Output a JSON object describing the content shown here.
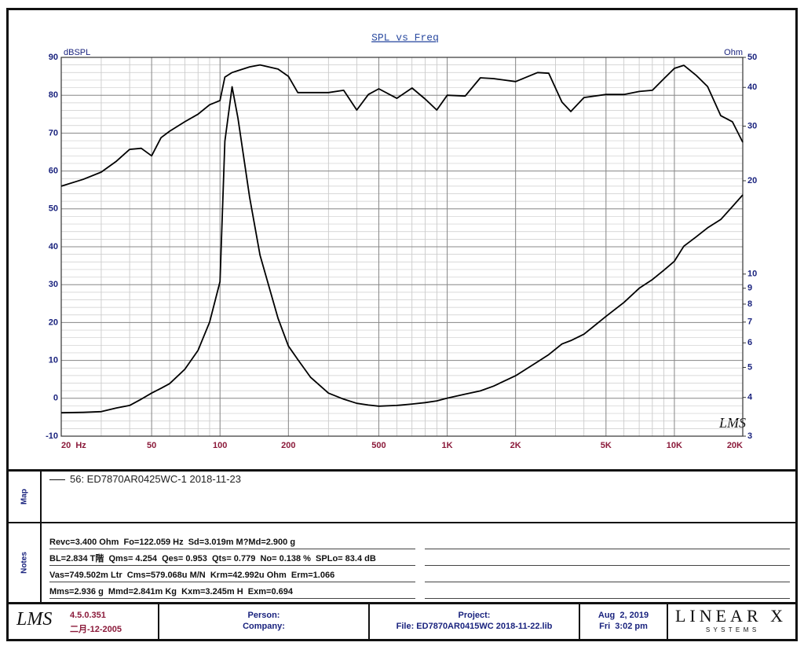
{
  "chart_data": {
    "type": "line",
    "title": "SPL vs Freq",
    "y_label": "dBSPL",
    "y2_label": "Ohm",
    "watermark": "LMS",
    "x": [
      20,
      25,
      30,
      35,
      40,
      45,
      50,
      55,
      60,
      70,
      80,
      90,
      100,
      105,
      113,
      120,
      135,
      150,
      180,
      200,
      220,
      250,
      300,
      350,
      400,
      450,
      500,
      600,
      700,
      800,
      900,
      1000,
      1200,
      1400,
      1600,
      2000,
      2500,
      2800,
      3200,
      3500,
      4000,
      5000,
      6000,
      7000,
      8000,
      9000,
      10000,
      11000,
      12500,
      14000,
      16000,
      18000,
      20000
    ],
    "series": [
      {
        "color": "#000000",
        "axis": "y",
        "values": [
          56.0,
          57.8,
          59.7,
          62.6,
          65.7,
          66.0,
          64.0,
          68.8,
          70.5,
          73.0,
          75.0,
          77.5,
          78.6,
          84.8,
          86.0,
          86.5,
          87.5,
          88.0,
          86.9,
          85.0,
          80.7,
          80.7,
          80.7,
          81.3,
          76.1,
          80.2,
          81.7,
          79.2,
          81.9,
          79.0,
          76.1,
          80.0,
          79.8,
          84.6,
          84.4,
          83.6,
          86.0,
          85.8,
          78.2,
          75.7,
          79.4,
          80.2,
          80.2,
          81.0,
          81.3,
          84.4,
          87.1,
          87.9,
          85.2,
          82.3,
          74.6,
          73.0,
          67.6
        ]
      },
      {
        "color": "#000000",
        "axis": "y2",
        "values": [
          3.57,
          3.58,
          3.6,
          3.7,
          3.77,
          3.95,
          4.13,
          4.28,
          4.43,
          4.93,
          5.67,
          7.0,
          9.45,
          26.8,
          40.2,
          31.8,
          17.7,
          11.5,
          7.2,
          5.86,
          5.3,
          4.65,
          4.13,
          3.95,
          3.83,
          3.78,
          3.75,
          3.77,
          3.81,
          3.85,
          3.9,
          3.98,
          4.1,
          4.2,
          4.35,
          4.7,
          5.21,
          5.5,
          5.95,
          6.1,
          6.4,
          7.3,
          8.1,
          9.0,
          9.6,
          10.3,
          11.0,
          12.3,
          13.2,
          14.1,
          15.0,
          16.5,
          18.0
        ]
      }
    ],
    "xlim": [
      20,
      20000
    ],
    "xscale": "log",
    "xticks": [
      {
        "value": 20,
        "label": "20  Hz"
      },
      50,
      100,
      200,
      500,
      {
        "value": 1000,
        "label": "1K"
      },
      {
        "value": 2000,
        "label": "2K"
      },
      {
        "value": 5000,
        "label": "5K"
      },
      {
        "value": 10000,
        "label": "10K"
      },
      {
        "value": 20000,
        "label": "20K"
      }
    ],
    "ylim": [
      -10,
      90
    ],
    "yticks": [
      -10,
      0,
      10,
      20,
      30,
      40,
      50,
      60,
      70,
      80,
      90
    ],
    "y2lim": [
      3,
      50
    ],
    "y2scale": "log",
    "y2ticks": [
      3,
      4,
      5,
      6,
      7,
      8,
      9,
      10,
      20,
      30,
      40,
      50
    ],
    "grid": true
  },
  "map": {
    "label": "Map",
    "entry": "56: ED7870AR0425WC-1 2018-11-23"
  },
  "notes": {
    "label": "Notes",
    "lines": [
      "Revc=3.400 Ohm  Fo=122.059 Hz  Sd=3.019m M?Md=2.900 g",
      "BL=2.834 T階  Qms= 4.254  Qes= 0.953  Qts= 0.779  No= 0.138 %  SPLo= 83.4 dB",
      "Vas=749.502m Ltr  Cms=579.068u M/N  Krm=42.992u Ohm  Erm=1.066",
      "Mms=2.936 g  Mmd=2.841m Kg  Kxm=3.245m H  Exm=0.694"
    ]
  },
  "footer": {
    "logo": "LMS",
    "version": "4.5.0.351",
    "build_date": "二月-12-2005",
    "person": "Person:",
    "company": "Company:",
    "project": "Project:",
    "file": "File: ED7870AR0415WC 2018-11-22.lib",
    "date": "Aug  2, 2019",
    "time": "Fri  3:02 pm",
    "brand": "LINEAR X",
    "brand_sub": "S  Y  S  T  E  M  S"
  }
}
